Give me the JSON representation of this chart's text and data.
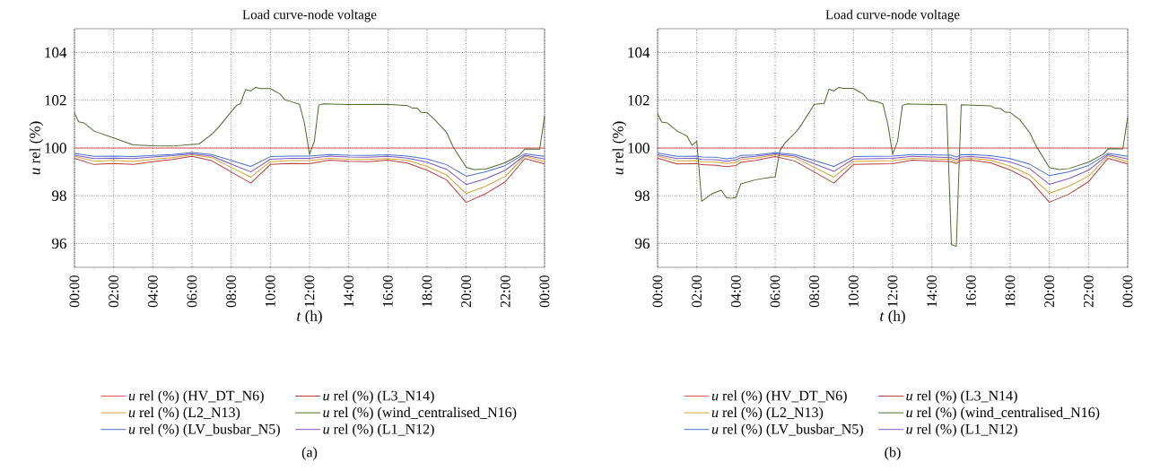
{
  "chart_data": [
    {
      "type": "line",
      "title": "Load curve-node voltage",
      "xlabel": "*t* (h)",
      "ylabel": "*u* rel (%)",
      "annotations": [
        "(a)"
      ],
      "xlim": [
        0,
        24
      ],
      "ylim": [
        95,
        105
      ],
      "xticks": [
        {
          "value": 0,
          "label": "00:00"
        },
        {
          "value": 2,
          "label": "02:00"
        },
        {
          "value": 4,
          "label": "04:00"
        },
        {
          "value": 6,
          "label": "06:00"
        },
        {
          "value": 8,
          "label": "08:00"
        },
        {
          "value": 10,
          "label": "10:00"
        },
        {
          "value": 12,
          "label": "12:00"
        },
        {
          "value": 14,
          "label": "14:00"
        },
        {
          "value": 16,
          "label": "16:00"
        },
        {
          "value": 18,
          "label": "18:00"
        },
        {
          "value": 20,
          "label": "20:00"
        },
        {
          "value": 22,
          "label": "22:00"
        },
        {
          "value": 24,
          "label": "00:00"
        }
      ],
      "yticks": [
        96,
        98,
        100,
        102,
        104
      ],
      "grid": true,
      "legend": "bottom",
      "series": [
        {
          "name": "*u* rel (%) (HV_DT_N6)",
          "color": "#e05a5a",
          "x": [
            0,
            24
          ],
          "values": [
            100,
            100
          ]
        },
        {
          "name": "*u* rel (%) (L3_N14)",
          "color": "#b5403d",
          "x": [
            0,
            1,
            2,
            3,
            4,
            5,
            6,
            7,
            9,
            10,
            11,
            12,
            13,
            14,
            15,
            16,
            17,
            18,
            19,
            20,
            21,
            22,
            23,
            24
          ],
          "values": [
            99.57,
            99.31,
            99.35,
            99.31,
            99.43,
            99.52,
            99.65,
            99.47,
            98.53,
            99.31,
            99.35,
            99.34,
            99.49,
            99.45,
            99.43,
            99.49,
            99.37,
            99.07,
            98.66,
            97.72,
            98.09,
            98.59,
            99.56,
            99.33
          ]
        },
        {
          "name": "*u* rel (%) (L2_N13)",
          "color": "#d4a43a",
          "x": [
            0,
            1,
            2,
            3,
            4,
            5,
            6,
            7,
            9,
            10,
            11,
            12,
            13,
            14,
            15,
            16,
            17,
            18,
            19,
            20,
            21,
            22,
            23,
            24
          ],
          "values": [
            99.65,
            99.45,
            99.48,
            99.44,
            99.53,
            99.6,
            99.72,
            99.6,
            98.78,
            99.43,
            99.47,
            99.47,
            99.57,
            99.53,
            99.52,
            99.56,
            99.48,
            99.23,
            98.87,
            98.09,
            98.4,
            98.82,
            99.66,
            99.43
          ]
        },
        {
          "name": "*u* rel (%) (wind_centralised_N16)",
          "color": "#4f6b2f",
          "x": [
            0,
            0.21,
            0.49,
            1,
            2,
            3,
            4,
            5,
            6,
            6.36,
            7,
            7.34,
            8,
            8.29,
            8.47,
            8.73,
            9,
            9.25,
            9.53,
            10,
            10.5,
            10.74,
            11,
            11.49,
            11.74,
            12,
            12.25,
            12.47,
            12.72,
            14,
            16,
            17,
            17.25,
            17.51,
            17.7,
            18,
            18.39,
            19,
            19.34,
            20,
            20.4,
            21,
            22,
            22.7,
            23,
            23.75,
            24
          ],
          "values": [
            101.48,
            101.1,
            101.05,
            100.71,
            100.42,
            100.13,
            100.09,
            100.08,
            100.15,
            100.17,
            100.57,
            100.85,
            101.52,
            101.8,
            101.85,
            102.45,
            102.39,
            102.54,
            102.49,
            102.49,
            102.26,
            102.02,
            101.96,
            101.83,
            101.05,
            99.73,
            100.3,
            101.8,
            101.85,
            101.82,
            101.83,
            101.78,
            101.67,
            101.67,
            101.49,
            101.48,
            101.19,
            100.65,
            100.04,
            99.19,
            99.1,
            99.12,
            99.39,
            99.7,
            99.96,
            99.95,
            101.32
          ]
        },
        {
          "name": "*u* rel (%) (LV_busbar_N5)",
          "color": "#4a6fc8",
          "x": [
            0,
            1,
            2,
            3,
            4,
            5,
            6,
            7,
            9,
            10,
            11,
            12,
            13,
            14,
            15,
            16,
            17,
            18,
            19,
            20,
            21,
            22,
            23,
            24
          ],
          "values": [
            99.77,
            99.65,
            99.66,
            99.64,
            99.69,
            99.73,
            99.81,
            99.73,
            99.23,
            99.64,
            99.66,
            99.66,
            99.73,
            99.7,
            99.69,
            99.72,
            99.66,
            99.54,
            99.3,
            98.82,
            99.0,
            99.27,
            99.76,
            99.65
          ]
        },
        {
          "name": "*u* rel (%) (L1_N12)",
          "color": "#7e57c2",
          "x": [
            0,
            1,
            2,
            3,
            4,
            5,
            6,
            7,
            9,
            10,
            11,
            12,
            13,
            14,
            15,
            16,
            17,
            18,
            19,
            20,
            21,
            22,
            23,
            24
          ],
          "values": [
            99.7,
            99.56,
            99.58,
            99.56,
            99.62,
            99.68,
            99.76,
            99.66,
            99.0,
            99.53,
            99.57,
            99.57,
            99.66,
            99.62,
            99.61,
            99.65,
            99.58,
            99.41,
            99.11,
            98.47,
            98.71,
            99.07,
            99.7,
            99.54
          ]
        }
      ]
    },
    {
      "type": "line",
      "title": "Load curve-node voltage",
      "xlabel": "*t* (h)",
      "ylabel": "*u* rel (%)",
      "annotations": [
        "(b)"
      ],
      "xlim": [
        0,
        24
      ],
      "ylim": [
        95,
        105
      ],
      "xticks": [
        {
          "value": 0,
          "label": "00:00"
        },
        {
          "value": 2,
          "label": "02:00"
        },
        {
          "value": 4,
          "label": "04:00"
        },
        {
          "value": 6,
          "label": "06:00"
        },
        {
          "value": 8,
          "label": "08:00"
        },
        {
          "value": 10,
          "label": "10:00"
        },
        {
          "value": 12,
          "label": "12:00"
        },
        {
          "value": 14,
          "label": "14:00"
        },
        {
          "value": 16,
          "label": "16:00"
        },
        {
          "value": 18,
          "label": "18:00"
        },
        {
          "value": 20,
          "label": "20:00"
        },
        {
          "value": 22,
          "label": "22:00"
        },
        {
          "value": 24,
          "label": "00:00"
        }
      ],
      "yticks": [
        96,
        98,
        100,
        102,
        104
      ],
      "grid": true,
      "legend": "bottom",
      "series": [
        {
          "name": "*u* rel (%) (HV_DT_N6)",
          "color": "#e05a5a",
          "x": [
            0,
            24
          ],
          "values": [
            100,
            100
          ]
        },
        {
          "name": "*u* rel (%) (L3_N14)",
          "color": "#b5403d",
          "x": [
            0,
            1,
            2,
            2.25,
            3,
            3.5,
            4,
            4.25,
            5,
            6,
            7,
            9,
            10,
            12,
            13,
            15,
            15.25,
            15.5,
            16,
            17,
            18,
            19,
            20,
            21,
            22,
            23,
            24
          ],
          "values": [
            99.58,
            99.33,
            99.35,
            99.3,
            99.28,
            99.22,
            99.27,
            99.4,
            99.48,
            99.64,
            99.46,
            98.53,
            99.31,
            99.34,
            99.49,
            99.43,
            99.35,
            99.47,
            99.49,
            99.38,
            99.08,
            98.66,
            97.73,
            98.07,
            98.59,
            99.57,
            99.33
          ]
        },
        {
          "name": "*u* rel (%) (L2_N13)",
          "color": "#d4a43a",
          "x": [
            0,
            1,
            2,
            2.25,
            3,
            3.5,
            4,
            4.25,
            5,
            6,
            7,
            9,
            10,
            12,
            13,
            15,
            15.25,
            15.5,
            16,
            17,
            18,
            19,
            20,
            21,
            22,
            23,
            24
          ],
          "values": [
            99.66,
            99.46,
            99.47,
            99.42,
            99.41,
            99.35,
            99.4,
            99.52,
            99.58,
            99.71,
            99.6,
            98.78,
            99.44,
            99.47,
            99.57,
            99.52,
            99.44,
            99.55,
            99.57,
            99.49,
            99.24,
            98.87,
            98.1,
            98.4,
            98.82,
            99.67,
            99.43
          ]
        },
        {
          "name": "*u* rel (%) (wind_centralised_N16)",
          "color": "#4f6b2f",
          "x": [
            0,
            0.2,
            0.5,
            1,
            1.5,
            1.75,
            2,
            2.25,
            2.75,
            3.25,
            3.5,
            3.75,
            4,
            4.25,
            5,
            5.75,
            6,
            6.25,
            6.5,
            7,
            7.25,
            8,
            8.5,
            8.75,
            9,
            9.25,
            9.5,
            10,
            10.5,
            10.75,
            11.25,
            11.5,
            11.75,
            12,
            12.25,
            12.5,
            12.75,
            14.75,
            15,
            15.25,
            15.5,
            17,
            17.25,
            17.5,
            17.75,
            18,
            18.5,
            19,
            19.33,
            20,
            20.5,
            21,
            22,
            22.75,
            23,
            23.75,
            24
          ],
          "values": [
            101.45,
            101.09,
            101.05,
            100.71,
            100.5,
            100.12,
            100.28,
            97.77,
            98.07,
            98.23,
            97.93,
            97.89,
            97.93,
            98.5,
            98.67,
            98.77,
            98.78,
            99.91,
            100.21,
            100.62,
            100.86,
            101.83,
            101.87,
            102.47,
            102.39,
            102.54,
            102.5,
            102.5,
            102.26,
            102.01,
            101.93,
            101.85,
            101.02,
            99.74,
            100.28,
            101.79,
            101.85,
            101.81,
            95.96,
            95.88,
            101.81,
            101.77,
            101.66,
            101.66,
            101.5,
            101.49,
            101.18,
            100.64,
            100.08,
            99.18,
            99.1,
            99.14,
            99.41,
            99.74,
            99.97,
            99.96,
            101.29
          ]
        },
        {
          "name": "*u* rel (%) (LV_busbar_N5)",
          "color": "#4a6fc8",
          "x": [
            0,
            1,
            2,
            2.25,
            3,
            3.5,
            4,
            4.25,
            5,
            6,
            7,
            9,
            10,
            12,
            13,
            15,
            15.25,
            15.5,
            16,
            17,
            18,
            19,
            20,
            21,
            22,
            23,
            24
          ],
          "values": [
            99.79,
            99.65,
            99.66,
            99.62,
            99.61,
            99.55,
            99.6,
            99.69,
            99.71,
            99.8,
            99.73,
            99.23,
            99.64,
            99.66,
            99.73,
            99.7,
            99.62,
            99.72,
            99.73,
            99.68,
            99.56,
            99.32,
            98.84,
            99.0,
            99.27,
            99.77,
            99.65
          ]
        },
        {
          "name": "*u* rel (%) (L1_N12)",
          "color": "#7e57c2",
          "x": [
            0,
            1,
            2,
            2.25,
            3,
            3.5,
            4,
            4.25,
            5,
            6,
            7,
            9,
            10,
            12,
            13,
            15,
            15.25,
            15.5,
            16,
            17,
            18,
            19,
            20,
            21,
            22,
            23,
            24
          ],
          "values": [
            99.72,
            99.56,
            99.57,
            99.52,
            99.51,
            99.45,
            99.5,
            99.6,
            99.65,
            99.76,
            99.66,
            99.02,
            99.54,
            99.57,
            99.65,
            99.6,
            99.52,
            99.62,
            99.64,
            99.58,
            99.42,
            99.13,
            98.48,
            98.72,
            99.07,
            99.72,
            99.54
          ]
        }
      ]
    }
  ]
}
